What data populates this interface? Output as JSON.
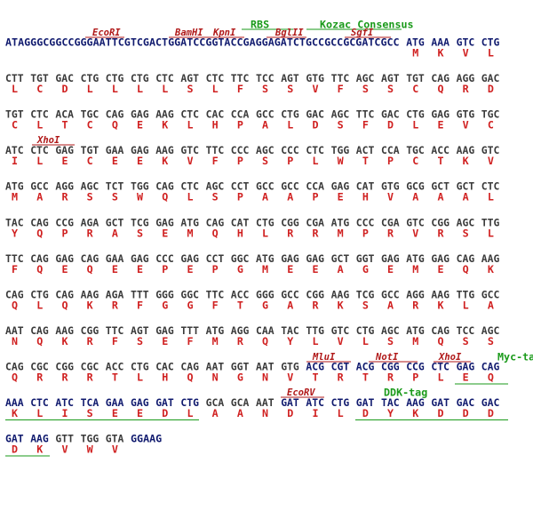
{
  "sequence": {
    "annotations": [
      {
        "text": "RBS",
        "kind": "feature"
      },
      {
        "text": "Kozac Consensus",
        "kind": "feature"
      },
      {
        "text": "EcoRI",
        "kind": "site"
      },
      {
        "text": "BamHI",
        "kind": "site"
      },
      {
        "text": "KpnI",
        "kind": "site"
      },
      {
        "text": "BglII",
        "kind": "site"
      },
      {
        "text": "SgfI",
        "kind": "site"
      },
      {
        "text": "XhoI",
        "kind": "site"
      },
      {
        "text": "MluI",
        "kind": "site"
      },
      {
        "text": "NotI",
        "kind": "site"
      },
      {
        "text": "XhoI",
        "kind": "site"
      },
      {
        "text": "Myc-tag",
        "kind": "feature"
      },
      {
        "text": "EcoRV",
        "kind": "site"
      },
      {
        "text": "DDK-tag",
        "kind": "feature"
      }
    ],
    "leader": "ATAGGGCGGCCGGGAATTCGTCGACTGGATCCGGTACCGAGGAGATCTGCCGCCGCGATCGCC",
    "rows": [
      {
        "codons": [
          "ATG",
          "AAA",
          "GTC",
          "CTG"
        ],
        "aa": [
          "M",
          "K",
          "V",
          "L"
        ]
      },
      {
        "codons": [
          "CTT",
          "TGT",
          "GAC",
          "CTG",
          "CTG",
          "CTG",
          "CTC",
          "AGT",
          "CTC",
          "TTC",
          "TCC",
          "AGT",
          "GTG",
          "TTC",
          "AGC",
          "AGT",
          "TGT",
          "CAG",
          "AGG",
          "GAC"
        ],
        "aa": [
          "L",
          "C",
          "D",
          "L",
          "L",
          "L",
          "L",
          "S",
          "L",
          "F",
          "S",
          "S",
          "V",
          "F",
          "S",
          "S",
          "C",
          "Q",
          "R",
          "D"
        ]
      },
      {
        "codons": [
          "TGT",
          "CTC",
          "ACA",
          "TGC",
          "CAG",
          "GAG",
          "AAG",
          "CTC",
          "CAC",
          "CCA",
          "GCC",
          "CTG",
          "GAC",
          "AGC",
          "TTC",
          "GAC",
          "CTG",
          "GAG",
          "GTG",
          "TGC"
        ],
        "aa": [
          "C",
          "L",
          "T",
          "C",
          "Q",
          "E",
          "K",
          "L",
          "H",
          "P",
          "A",
          "L",
          "D",
          "S",
          "F",
          "D",
          "L",
          "E",
          "V",
          "C"
        ]
      },
      {
        "codons": [
          "ATC",
          "CTC",
          "GAG",
          "TGT",
          "GAA",
          "GAG",
          "AAG",
          "GTC",
          "TTC",
          "CCC",
          "AGC",
          "CCC",
          "CTC",
          "TGG",
          "ACT",
          "CCA",
          "TGC",
          "ACC",
          "AAG",
          "GTC"
        ],
        "aa": [
          "I",
          "L",
          "E",
          "C",
          "E",
          "E",
          "K",
          "V",
          "F",
          "P",
          "S",
          "P",
          "L",
          "W",
          "T",
          "P",
          "C",
          "T",
          "K",
          "V"
        ]
      },
      {
        "codons": [
          "ATG",
          "GCC",
          "AGG",
          "AGC",
          "TCT",
          "TGG",
          "CAG",
          "CTC",
          "AGC",
          "CCT",
          "GCC",
          "GCC",
          "CCA",
          "GAG",
          "CAT",
          "GTG",
          "GCG",
          "GCT",
          "GCT",
          "CTC"
        ],
        "aa": [
          "M",
          "A",
          "R",
          "S",
          "S",
          "W",
          "Q",
          "L",
          "S",
          "P",
          "A",
          "A",
          "P",
          "E",
          "H",
          "V",
          "A",
          "A",
          "A",
          "L"
        ]
      },
      {
        "codons": [
          "TAC",
          "CAG",
          "CCG",
          "AGA",
          "GCT",
          "TCG",
          "GAG",
          "ATG",
          "CAG",
          "CAT",
          "CTG",
          "CGG",
          "CGA",
          "ATG",
          "CCC",
          "CGA",
          "GTC",
          "CGG",
          "AGC",
          "TTG"
        ],
        "aa": [
          "Y",
          "Q",
          "P",
          "R",
          "A",
          "S",
          "E",
          "M",
          "Q",
          "H",
          "L",
          "R",
          "R",
          "M",
          "P",
          "R",
          "V",
          "R",
          "S",
          "L"
        ]
      },
      {
        "codons": [
          "TTC",
          "CAG",
          "GAG",
          "CAG",
          "GAA",
          "GAG",
          "CCC",
          "GAG",
          "CCT",
          "GGC",
          "ATG",
          "GAG",
          "GAG",
          "GCT",
          "GGT",
          "GAG",
          "ATG",
          "GAG",
          "CAG",
          "AAG"
        ],
        "aa": [
          "F",
          "Q",
          "E",
          "Q",
          "E",
          "E",
          "P",
          "E",
          "P",
          "G",
          "M",
          "E",
          "E",
          "A",
          "G",
          "E",
          "M",
          "E",
          "Q",
          "K"
        ]
      },
      {
        "codons": [
          "CAG",
          "CTG",
          "CAG",
          "AAG",
          "AGA",
          "TTT",
          "GGG",
          "GGC",
          "TTC",
          "ACC",
          "GGG",
          "GCC",
          "CGG",
          "AAG",
          "TCG",
          "GCC",
          "AGG",
          "AAG",
          "TTG",
          "GCC"
        ],
        "aa": [
          "Q",
          "L",
          "Q",
          "K",
          "R",
          "F",
          "G",
          "G",
          "F",
          "T",
          "G",
          "A",
          "R",
          "K",
          "S",
          "A",
          "R",
          "K",
          "L",
          "A"
        ]
      },
      {
        "codons": [
          "AAT",
          "CAG",
          "AAG",
          "CGG",
          "TTC",
          "AGT",
          "GAG",
          "TTT",
          "ATG",
          "AGG",
          "CAA",
          "TAC",
          "TTG",
          "GTC",
          "CTG",
          "AGC",
          "ATG",
          "CAG",
          "TCC",
          "AGC"
        ],
        "aa": [
          "N",
          "Q",
          "K",
          "R",
          "F",
          "S",
          "E",
          "F",
          "M",
          "R",
          "Q",
          "Y",
          "L",
          "V",
          "L",
          "S",
          "M",
          "Q",
          "S",
          "S"
        ]
      },
      {
        "codons": [
          "CAG",
          "CGC",
          "CGG",
          "CGC",
          "ACC",
          "CTG",
          "CAC",
          "CAG",
          "AAT",
          "GGT",
          "AAT",
          "GTG",
          "ACG",
          "CGT",
          "ACG",
          "CGG",
          "CCG",
          "CTC",
          "GAG",
          "CAG"
        ],
        "aa": [
          "Q",
          "R",
          "R",
          "R",
          "T",
          "L",
          "H",
          "Q",
          "N",
          "G",
          "N",
          "V",
          "T",
          "R",
          "T",
          "R",
          "P",
          "L",
          "E",
          "Q"
        ]
      },
      {
        "codons": [
          "AAA",
          "CTC",
          "ATC",
          "TCA",
          "GAA",
          "GAG",
          "GAT",
          "CTG",
          "GCA",
          "GCA",
          "AAT",
          "GAT",
          "ATC",
          "CTG",
          "GAT",
          "TAC",
          "AAG",
          "GAT",
          "GAC",
          "GAC"
        ],
        "aa": [
          "K",
          "L",
          "I",
          "S",
          "E",
          "E",
          "D",
          "L",
          "A",
          "A",
          "N",
          "D",
          "I",
          "L",
          "D",
          "Y",
          "K",
          "D",
          "D",
          "D"
        ]
      },
      {
        "codons": [
          "GAT",
          "AAG",
          "GTT",
          "TGG",
          "GTA"
        ],
        "aa": [
          "D",
          "K",
          "V",
          "W",
          "V"
        ]
      }
    ],
    "tail": "GGAAG"
  }
}
